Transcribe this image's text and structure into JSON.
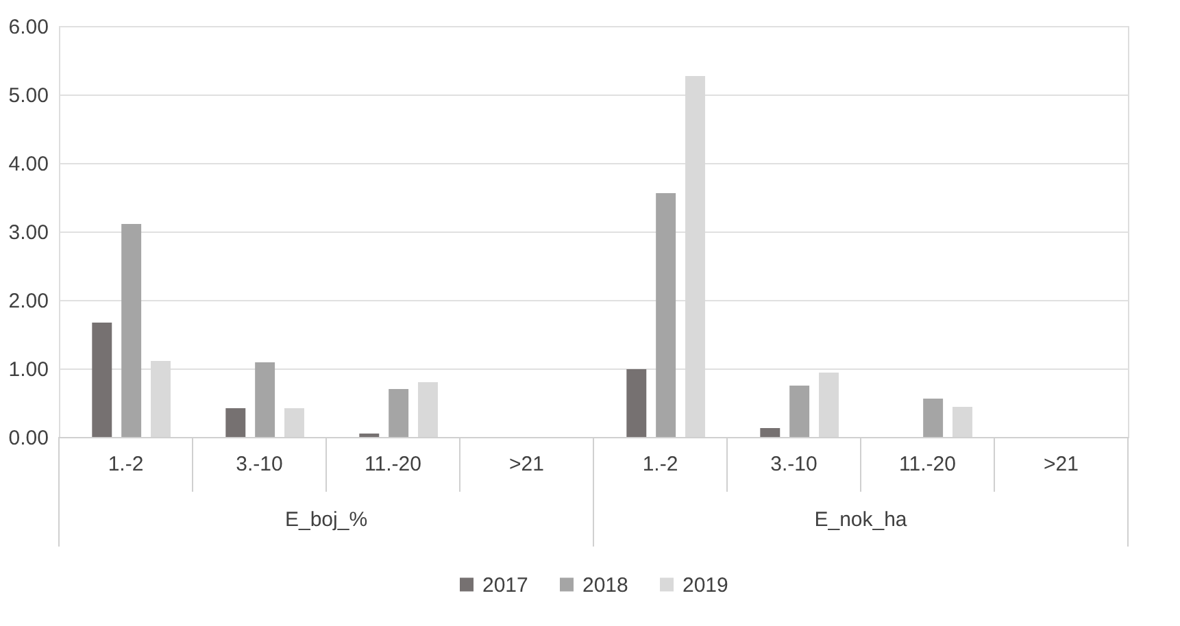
{
  "chart_data": {
    "type": "bar",
    "categories": [
      "1.-2",
      "3.-10",
      "11.-20",
      ">21",
      "1.-2",
      "3.-10",
      "11.-20",
      ">21"
    ],
    "annotations": [
      "E_boj_%",
      "E_nok_ha"
    ],
    "series": [
      {
        "name": "2017",
        "color": "#767171",
        "values": [
          1.67,
          0.42,
          0.05,
          0,
          0.99,
          0.13,
          0,
          0
        ]
      },
      {
        "name": "2018",
        "color": "#a5a5a5",
        "values": [
          3.11,
          1.09,
          0.7,
          0,
          3.56,
          0.75,
          0.56,
          0
        ]
      },
      {
        "name": "2019",
        "color": "#d9d9d9",
        "values": [
          1.11,
          0.42,
          0.8,
          0,
          5.27,
          0.94,
          0.44,
          0
        ]
      }
    ],
    "ylim": [
      0,
      6
    ],
    "yticks": [
      {
        "value": 0,
        "label": "0.00"
      },
      {
        "value": 1,
        "label": "1.00"
      },
      {
        "value": 2,
        "label": "2.00"
      },
      {
        "value": 3,
        "label": "3.00"
      },
      {
        "value": 4,
        "label": "4.00"
      },
      {
        "value": 5,
        "label": "5.00"
      },
      {
        "value": 6,
        "label": "6.00"
      }
    ],
    "grid": "y",
    "legend": "bottom"
  }
}
